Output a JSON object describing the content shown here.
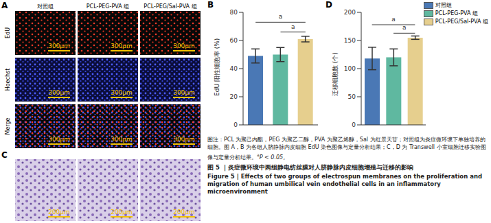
{
  "panel_labels": [
    "A",
    "B",
    "C",
    "D"
  ],
  "images": {
    "columns": [
      "对照组",
      "PCL-PEG-PVA 组",
      "PCL-PEG/Sal-PVA 组"
    ],
    "rows": [
      "EdU",
      "Hoechst",
      "Merge"
    ],
    "scale_bar_A": "300μm",
    "scale_bar_C": "200μm"
  },
  "chart_data": [
    {
      "type": "bar",
      "y_label": "EdU 阳性细胞率 (%)",
      "categories": [
        "对照组",
        "PCL-PEG-PVA 组",
        "PCL-PEG/Sal-PVA 组"
      ],
      "values": [
        49,
        50,
        61
      ],
      "errors": [
        5,
        5,
        2
      ],
      "colors": [
        "#4a78b5",
        "#5fb8a0",
        "#e6cf8e"
      ],
      "ylim": [
        0,
        80
      ],
      "yticks": [
        0,
        20,
        40,
        60,
        80
      ],
      "tick_labels": "y",
      "significance": [
        {
          "from": 0,
          "to": 2,
          "y": 73,
          "label": "a"
        },
        {
          "from": 1,
          "to": 2,
          "y": 66,
          "label": "a"
        }
      ]
    },
    {
      "type": "bar",
      "y_label": "迁移细胞数 (个)",
      "categories": [
        "对照组",
        "PCL-PEG-PVA 组",
        "PCL-PEG/Sal-PVA 组"
      ],
      "values": [
        118,
        120,
        155
      ],
      "errors": [
        20,
        15,
        3
      ],
      "colors": [
        "#4a78b5",
        "#5fb8a0",
        "#e6cf8e"
      ],
      "ylim": [
        0,
        200
      ],
      "yticks": [
        0,
        50,
        100,
        150,
        200
      ],
      "tick_labels": "y",
      "legend": "upper right",
      "significance": [
        {
          "from": 0,
          "to": 2,
          "y": 178,
          "label": "a"
        },
        {
          "from": 1,
          "to": 2,
          "y": 163,
          "label": "a"
        }
      ]
    }
  ],
  "caption": {
    "note": "图注：PCL 为聚己内酯，PEG 为聚乙二醇，PVA 为聚乙烯醇，Sal 为红景天苷；对照组为炎症微环境下单独培养的细胞。图 A，B 为各组人脐静脉内皮细胞 EdU 染色图像与定量分析结果；C，D 为 Transwell 小室细胞迁移实验图像与定量分析结果。",
    "p_note": [
      "a",
      "P < 0.05。"
    ],
    "title_cn": "图 5 ｜炎症微环境中两组静电纺丝膜对人脐静脉内皮细胞增殖与迁移的影响",
    "title_en": "Figure 5  |  Effects of two groups of electrospun membranes on the proliferation and migration of human umbilical vein endothelial cells in an inflammatory microenvironment"
  }
}
